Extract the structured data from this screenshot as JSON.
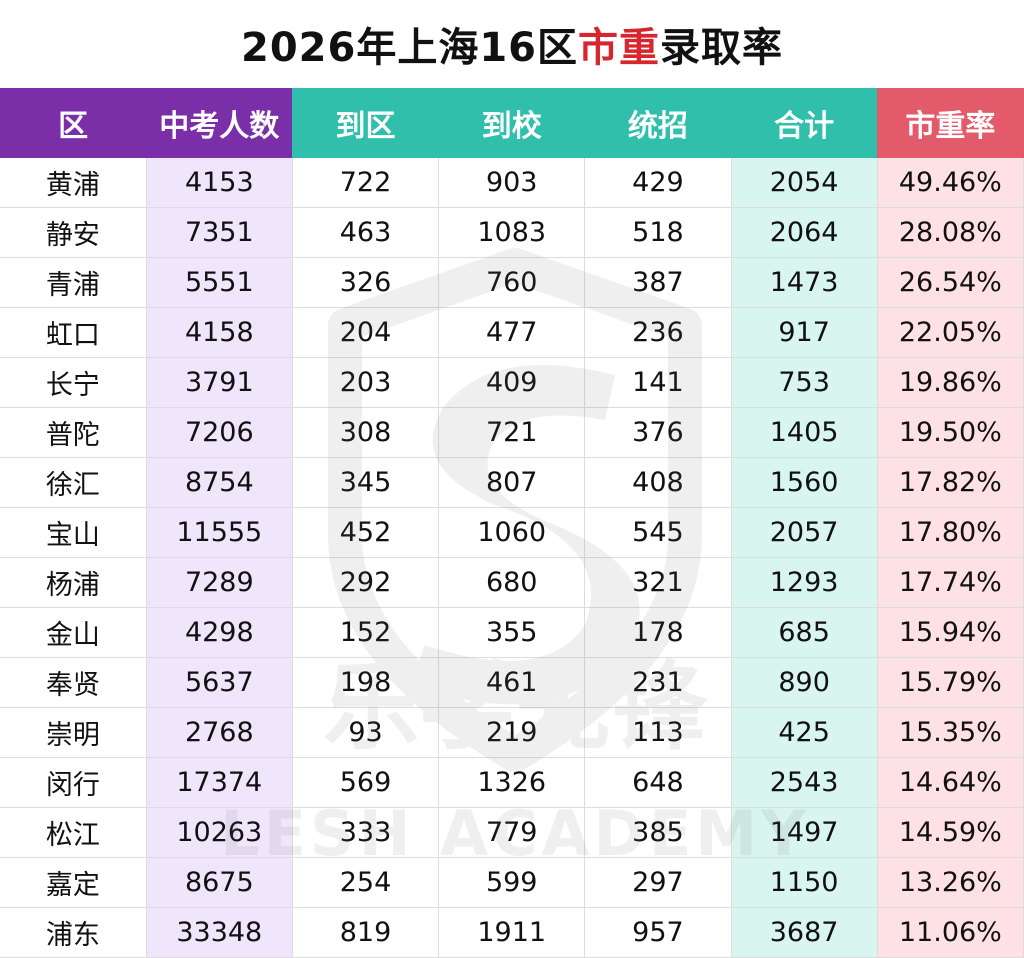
{
  "title": {
    "prefix": "2026年上海16区",
    "highlight": "市重",
    "suffix": "录取率"
  },
  "headers": [
    "区",
    "中考人数",
    "到区",
    "到校",
    "统招",
    "合计",
    "市重率"
  ],
  "rows": [
    [
      "黄浦",
      "4153",
      "722",
      "903",
      "429",
      "2054",
      "49.46%"
    ],
    [
      "静安",
      "7351",
      "463",
      "1083",
      "518",
      "2064",
      "28.08%"
    ],
    [
      "青浦",
      "5551",
      "326",
      "760",
      "387",
      "1473",
      "26.54%"
    ],
    [
      "虹口",
      "4158",
      "204",
      "477",
      "236",
      "917",
      "22.05%"
    ],
    [
      "长宁",
      "3791",
      "203",
      "409",
      "141",
      "753",
      "19.86%"
    ],
    [
      "普陀",
      "7206",
      "308",
      "721",
      "376",
      "1405",
      "19.50%"
    ],
    [
      "徐汇",
      "8754",
      "345",
      "807",
      "408",
      "1560",
      "17.82%"
    ],
    [
      "宝山",
      "11555",
      "452",
      "1060",
      "545",
      "2057",
      "17.80%"
    ],
    [
      "杨浦",
      "7289",
      "292",
      "680",
      "321",
      "1293",
      "17.74%"
    ],
    [
      "金山",
      "4298",
      "152",
      "355",
      "178",
      "685",
      "15.94%"
    ],
    [
      "奉贤",
      "5637",
      "198",
      "461",
      "231",
      "890",
      "15.79%"
    ],
    [
      "崇明",
      "2768",
      "93",
      "219",
      "113",
      "425",
      "15.35%"
    ],
    [
      "闵行",
      "17374",
      "569",
      "1326",
      "648",
      "2543",
      "14.64%"
    ],
    [
      "松江",
      "10263",
      "333",
      "779",
      "385",
      "1497",
      "14.59%"
    ],
    [
      "嘉定",
      "8675",
      "254",
      "599",
      "297",
      "1150",
      "13.26%"
    ],
    [
      "浦东",
      "33348",
      "819",
      "1911",
      "957",
      "3687",
      "11.06%"
    ]
  ],
  "watermark": {
    "icon": "lesh-logo-icon",
    "text_cn": "乐学先锋",
    "text_en": "LESH ACADEMY",
    "color": "#6b6b6b"
  },
  "colors": {
    "header_purple": "#7a2fa8",
    "header_teal": "#2fbfaa",
    "header_red": "#e35a6a",
    "col_purple": "#efe6fb",
    "col_teal": "#d9f5f0",
    "col_pink": "#fde1e5",
    "title_red": "#d7262e"
  }
}
